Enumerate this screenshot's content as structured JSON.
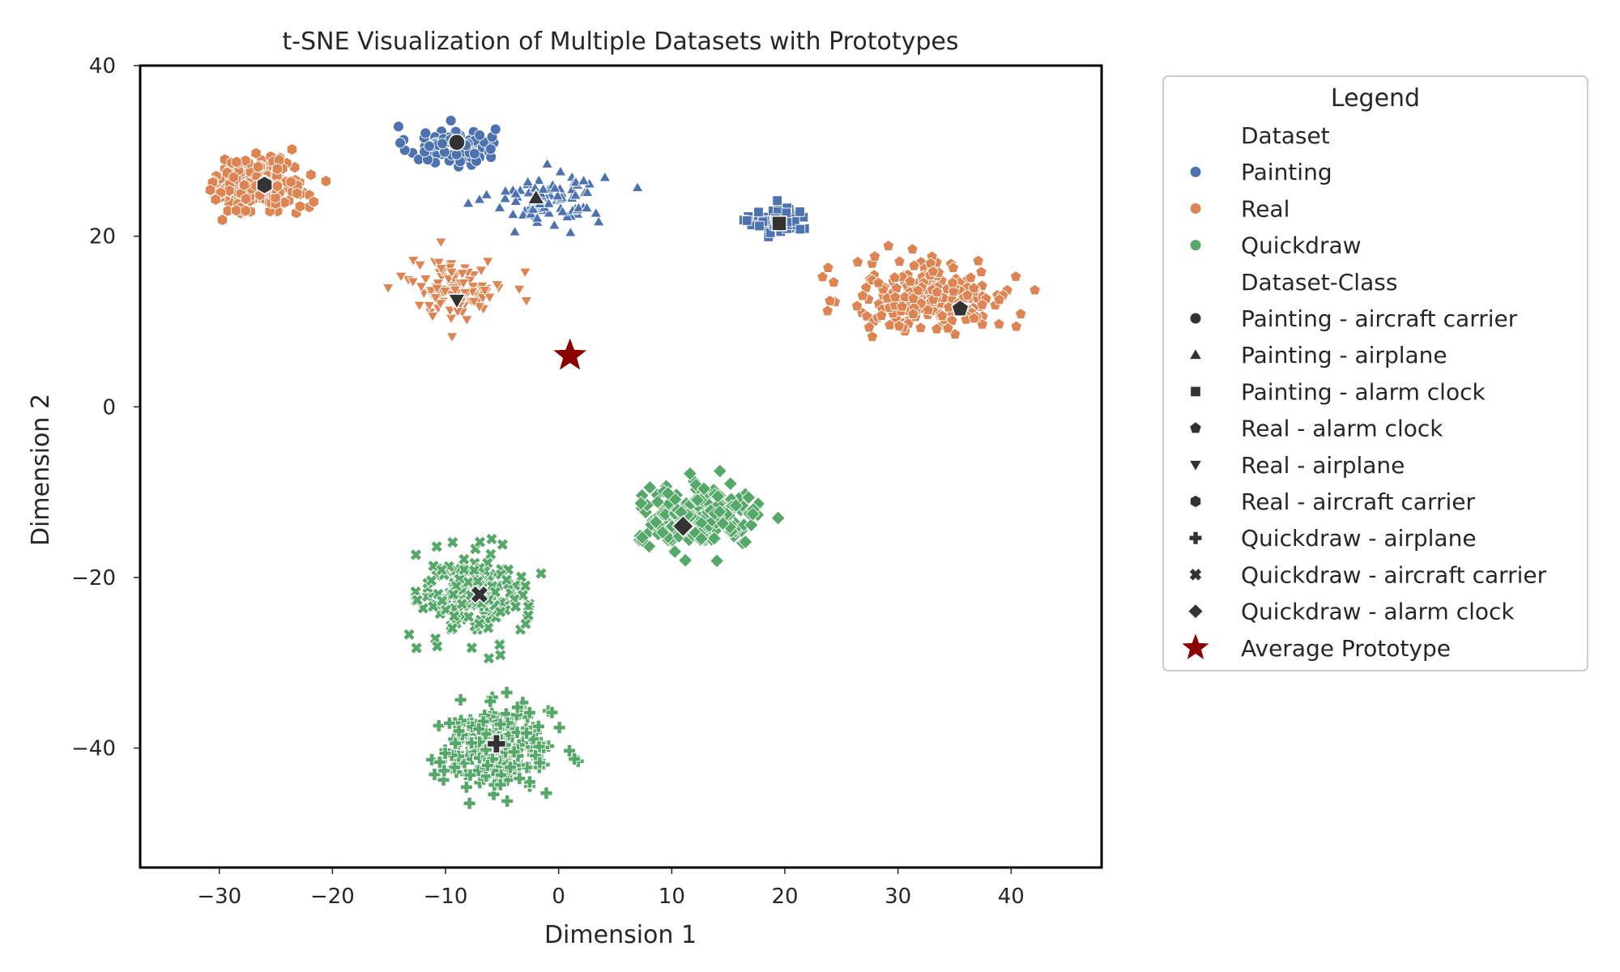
{
  "chart_data": {
    "type": "scatter",
    "title": "t-SNE Visualization of Multiple Datasets with Prototypes",
    "xlabel": "Dimension 1",
    "ylabel": "Dimension 2",
    "xlim": [
      -37,
      48
    ],
    "ylim": [
      -54,
      40
    ],
    "xticks": [
      -30,
      -20,
      -10,
      0,
      10,
      20,
      30,
      40
    ],
    "xtick_labels": [
      "−30",
      "−20",
      "−10",
      "0",
      "10",
      "20",
      "30",
      "40"
    ],
    "yticks": [
      40,
      20,
      0,
      -20,
      -40
    ],
    "ytick_labels": [
      "40",
      "20",
      "0",
      "−20",
      "−40"
    ],
    "grid": false,
    "legend": {
      "title": "Legend",
      "placement": "outside-right-top",
      "sections": [
        {
          "heading": "Dataset",
          "entries": [
            {
              "label": "Painting",
              "marker": "circle",
              "color": "#4c72b0"
            },
            {
              "label": "Real",
              "marker": "circle",
              "color": "#dd8452"
            },
            {
              "label": "Quickdraw",
              "marker": "circle",
              "color": "#55a868"
            }
          ]
        },
        {
          "heading": "Dataset-Class",
          "entries": [
            {
              "label": "Painting - aircraft carrier",
              "marker": "circle",
              "color": "#333333"
            },
            {
              "label": "Painting - airplane",
              "marker": "triangle-up",
              "color": "#333333"
            },
            {
              "label": "Painting - alarm clock",
              "marker": "square",
              "color": "#333333"
            },
            {
              "label": "Real - alarm clock",
              "marker": "pentagon",
              "color": "#333333"
            },
            {
              "label": "Real - airplane",
              "marker": "triangle-down",
              "color": "#333333"
            },
            {
              "label": "Real - aircraft carrier",
              "marker": "hexagon",
              "color": "#333333"
            },
            {
              "label": "Quickdraw - airplane",
              "marker": "plus",
              "color": "#333333"
            },
            {
              "label": "Quickdraw - aircraft carrier",
              "marker": "x",
              "color": "#333333"
            },
            {
              "label": "Quickdraw - alarm clock",
              "marker": "diamond",
              "color": "#333333"
            }
          ]
        },
        {
          "heading": "",
          "entries": [
            {
              "label": "Average Prototype",
              "marker": "star",
              "color": "#8b0000"
            }
          ]
        }
      ]
    },
    "clusters": [
      {
        "dataset": "Painting",
        "class": "aircraft carrier",
        "marker": "circle",
        "color": "#4c72b0",
        "center": [
          -9.5,
          30.5
        ],
        "spread": [
          3.5,
          2.2
        ],
        "n": 90,
        "prototype": [
          -9,
          31
        ]
      },
      {
        "dataset": "Painting",
        "class": "airplane",
        "marker": "triangle-up",
        "color": "#4c72b0",
        "center": [
          -1,
          24.5
        ],
        "spread": [
          4.5,
          2.8
        ],
        "n": 95,
        "prototype": [
          -2,
          24.5
        ]
      },
      {
        "dataset": "Painting",
        "class": "alarm clock",
        "marker": "square",
        "color": "#4c72b0",
        "center": [
          19.5,
          21.8
        ],
        "spread": [
          2.3,
          1.6
        ],
        "n": 60,
        "prototype": [
          19.5,
          21.5
        ]
      },
      {
        "dataset": "Real",
        "class": "alarm clock",
        "marker": "pentagon",
        "color": "#dd8452",
        "center": [
          33,
          13
        ],
        "spread": [
          6.5,
          3.8
        ],
        "n": 230,
        "prototype": [
          35.5,
          11.5
        ]
      },
      {
        "dataset": "Real",
        "class": "airplane",
        "marker": "triangle-down",
        "color": "#dd8452",
        "center": [
          -9,
          14
        ],
        "spread": [
          3.8,
          3.2
        ],
        "n": 110,
        "prototype": [
          -9,
          12.5
        ]
      },
      {
        "dataset": "Real",
        "class": "aircraft carrier",
        "marker": "hexagon",
        "color": "#dd8452",
        "center": [
          -26.5,
          26
        ],
        "spread": [
          3.8,
          3.0
        ],
        "n": 170,
        "prototype": [
          -26,
          26
        ]
      },
      {
        "dataset": "Quickdraw",
        "class": "airplane",
        "marker": "plus",
        "color": "#55a868",
        "center": [
          -5.5,
          -40
        ],
        "spread": [
          4.5,
          4.2
        ],
        "n": 250,
        "prototype": [
          -5.5,
          -39.5
        ]
      },
      {
        "dataset": "Quickdraw",
        "class": "aircraft carrier",
        "marker": "x",
        "color": "#55a868",
        "center": [
          -7.5,
          -22
        ],
        "spread": [
          4.2,
          5.0
        ],
        "n": 170,
        "prototype": [
          -7,
          -22
        ]
      },
      {
        "dataset": "Quickdraw",
        "class": "alarm clock",
        "marker": "diamond",
        "color": "#55a868",
        "center": [
          12.5,
          -13
        ],
        "spread": [
          4.8,
          3.0
        ],
        "n": 230,
        "prototype": [
          11,
          -14
        ]
      }
    ],
    "average_prototype": {
      "x": 1,
      "y": 6,
      "marker": "star",
      "color": "#8b0000"
    }
  }
}
